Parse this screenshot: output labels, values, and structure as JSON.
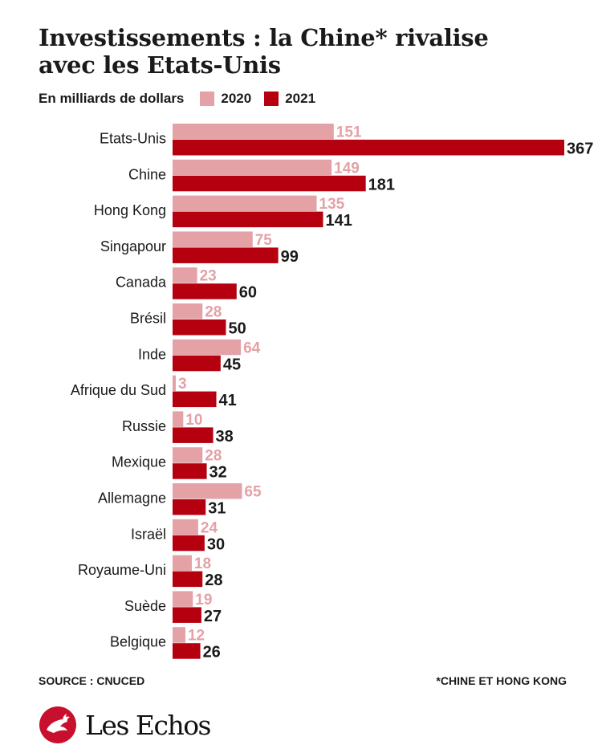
{
  "title_line1": "Investissements : la Chine* rivalise",
  "title_line2": "avec les Etats-Unis",
  "unit_label": "En milliards de dollars",
  "colors": {
    "series_2020": "#e4a1a6",
    "series_2021": "#b5000f",
    "text": "#1a1a1a"
  },
  "chart_data": {
    "type": "bar",
    "orientation": "horizontal",
    "categories": [
      "Etats-Unis",
      "Chine",
      "Hong Kong",
      "Singapour",
      "Canada",
      "Brésil",
      "Inde",
      "Afrique du Sud",
      "Russie",
      "Mexique",
      "Allemagne",
      "Israël",
      "Royaume-Uni",
      "Suède",
      "Belgique"
    ],
    "series": [
      {
        "name": "2020",
        "values": [
          151,
          149,
          135,
          75,
          23,
          28,
          64,
          3,
          10,
          28,
          65,
          24,
          18,
          19,
          12
        ]
      },
      {
        "name": "2021",
        "values": [
          367,
          181,
          141,
          99,
          60,
          50,
          45,
          41,
          38,
          32,
          31,
          30,
          28,
          27,
          26
        ]
      }
    ],
    "xlim": [
      0,
      367
    ],
    "legend": "top-left",
    "grid": false
  },
  "source": "SOURCE : CNUCED",
  "footnote": "*CHINE ET HONG KONG",
  "brand": "Les Echos",
  "logo_icon": "rooster-icon"
}
